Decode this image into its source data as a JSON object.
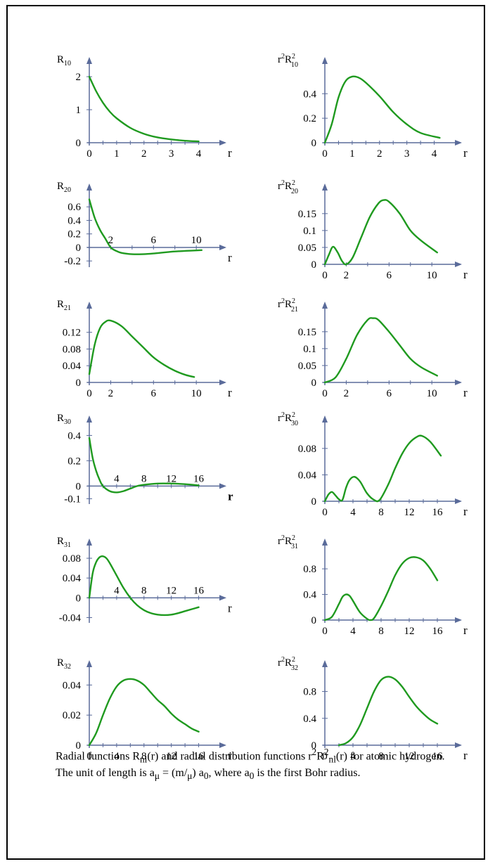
{
  "caption": {
    "line1": "Radial functions R",
    "line1_sub1": "nl",
    "line1_b": "(r) and radial distribution functions r",
    "line1_sup": "2",
    "line1_c": "R",
    "line1_sup2": "2",
    "line1_sub2": "nl",
    "line1_d": "(r) for atomic hydrogen. The unit of length is a",
    "line2_sub_mu": "μ",
    "line2_a": " = (m/",
    "line2_b": "μ",
    "line2_c": ") a",
    "line2_sub0": "0",
    "line2_d": ", where a",
    "line2_sub0b": "0",
    "line2_e": " is the first Bohr radius."
  },
  "colors": {
    "curve": "#1f9a1f",
    "axis": "#5a6b9a"
  },
  "chart_data": [
    {
      "type": "line",
      "ylabel_main": "R",
      "ylabel_sub": "10",
      "ylabel_sup": "",
      "xlabel": "r",
      "xlim": [
        0,
        4.5
      ],
      "ylim": [
        0,
        2.3
      ],
      "xticks": [
        "0",
        "1",
        "2",
        "3",
        "4"
      ],
      "xtickvals": [
        0,
        1,
        2,
        3,
        4
      ],
      "yticks": [
        "0",
        "1",
        "2"
      ],
      "ytickvals": [
        0,
        1,
        2
      ],
      "x": [
        0,
        0.25,
        0.5,
        0.75,
        1,
        1.5,
        2,
        2.5,
        3,
        3.5,
        4
      ],
      "y": [
        2,
        1.56,
        1.21,
        0.94,
        0.74,
        0.45,
        0.27,
        0.16,
        0.1,
        0.06,
        0.04
      ]
    },
    {
      "type": "line",
      "ylabel_main": "r",
      "ylabel_sub": "10",
      "ylabel_sup": "2",
      "xlabel": "r",
      "xlim": [
        0,
        4.5
      ],
      "ylim": [
        0,
        0.62
      ],
      "xticks": [
        "0",
        "1",
        "2",
        "3",
        "4"
      ],
      "xtickvals": [
        0,
        1,
        2,
        3,
        4
      ],
      "yticks": [
        "0",
        "0.2",
        "0.4"
      ],
      "ytickvals": [
        0,
        0.2,
        0.4
      ],
      "x": [
        0,
        0.25,
        0.5,
        0.75,
        1,
        1.25,
        1.5,
        2,
        2.5,
        3,
        3.5,
        4.2
      ],
      "y": [
        0,
        0.15,
        0.37,
        0.5,
        0.54,
        0.53,
        0.49,
        0.38,
        0.25,
        0.15,
        0.08,
        0.04
      ]
    },
    {
      "type": "line",
      "ylabel_main": "R",
      "ylabel_sub": "20",
      "ylabel_sup": "",
      "xlabel": "r",
      "xlim": [
        0,
        11.5
      ],
      "ylim": [
        -0.25,
        0.8
      ],
      "xticks": [
        "2",
        "6",
        "10"
      ],
      "xtickvals": [
        2,
        6,
        10
      ],
      "yticks": [
        "0.6",
        "0.4",
        "0.2",
        "0",
        "-0.2"
      ],
      "ytickvals": [
        0.6,
        0.4,
        0.2,
        0,
        -0.2
      ],
      "x": [
        0,
        0.5,
        1,
        1.5,
        2,
        2.5,
        3,
        4,
        5,
        6,
        8,
        10.5
      ],
      "y": [
        0.71,
        0.44,
        0.26,
        0.13,
        0,
        -0.05,
        -0.08,
        -0.1,
        -0.1,
        -0.09,
        -0.06,
        -0.04
      ]
    },
    {
      "type": "line",
      "ylabel_main": "r",
      "ylabel_sub": "20",
      "ylabel_sup": "2",
      "xlabel": "r",
      "xlim": [
        0,
        11.5
      ],
      "ylim": [
        0,
        0.21
      ],
      "xticks": [
        "0",
        "2",
        "6",
        "10"
      ],
      "xtickvals": [
        0,
        2,
        6,
        10
      ],
      "yticks": [
        "0",
        "0.05",
        "0.1",
        "0.15"
      ],
      "ytickvals": [
        0,
        0.05,
        0.1,
        0.15
      ],
      "x": [
        0,
        0.4,
        0.76,
        1.2,
        1.6,
        2,
        2.6,
        3.4,
        4.2,
        5,
        5.5,
        6,
        7,
        8,
        9,
        10.5
      ],
      "y": [
        0,
        0.03,
        0.052,
        0.035,
        0.01,
        0,
        0.02,
        0.08,
        0.14,
        0.18,
        0.19,
        0.185,
        0.15,
        0.1,
        0.07,
        0.035
      ]
    },
    {
      "type": "line",
      "ylabel_main": "R",
      "ylabel_sub": "21",
      "ylabel_sup": "",
      "xlabel": "r",
      "xlim": [
        0,
        11.5
      ],
      "ylim": [
        0,
        0.17
      ],
      "xticks": [
        "0",
        "2",
        "6",
        "10"
      ],
      "xtickvals": [
        0,
        2,
        6,
        10
      ],
      "yticks": [
        "0",
        "0.04",
        "0.08",
        "0.12"
      ],
      "ytickvals": [
        0,
        0.04,
        0.08,
        0.12
      ],
      "x": [
        0,
        0.5,
        1,
        1.5,
        2,
        3,
        4,
        5,
        6,
        7,
        8,
        9,
        9.8
      ],
      "y": [
        0.02,
        0.09,
        0.13,
        0.145,
        0.148,
        0.135,
        0.11,
        0.085,
        0.06,
        0.042,
        0.028,
        0.018,
        0.013
      ]
    },
    {
      "type": "line",
      "ylabel_main": "r",
      "ylabel_sub": "21",
      "ylabel_sup": "2",
      "xlabel": "r",
      "xlim": [
        0,
        11.5
      ],
      "ylim": [
        0,
        0.21
      ],
      "xticks": [
        "0",
        "2",
        "6",
        "10"
      ],
      "xtickvals": [
        0,
        2,
        6,
        10
      ],
      "yticks": [
        "0",
        "0.05",
        "0.1",
        "0.15"
      ],
      "ytickvals": [
        0,
        0.05,
        0.1,
        0.15
      ],
      "x": [
        0,
        1,
        2,
        3,
        4,
        4.5,
        5,
        6,
        7,
        8,
        9,
        10.5
      ],
      "y": [
        0,
        0.015,
        0.07,
        0.14,
        0.185,
        0.19,
        0.185,
        0.15,
        0.11,
        0.07,
        0.045,
        0.02
      ]
    },
    {
      "type": "line",
      "ylabel_main": "R",
      "ylabel_sub": "30",
      "ylabel_sup": "",
      "xlabel": "r",
      "xlim": [
        0,
        18
      ],
      "ylim": [
        -0.12,
        0.48
      ],
      "xticks": [
        "4",
        "8",
        "12",
        "16"
      ],
      "xtickvals": [
        4,
        8,
        12,
        16
      ],
      "yticks": [
        "0.4",
        "0.2",
        "0",
        "-0.1"
      ],
      "ytickvals": [
        0.4,
        0.2,
        0,
        -0.1
      ],
      "x": [
        0,
        0.5,
        1,
        1.5,
        2,
        3,
        4,
        5,
        6,
        7,
        8,
        10,
        12,
        14,
        16
      ],
      "y": [
        0.38,
        0.22,
        0.12,
        0.05,
        0,
        -0.04,
        -0.05,
        -0.04,
        -0.02,
        0,
        0.01,
        0.02,
        0.02,
        0.015,
        0.005
      ]
    },
    {
      "type": "line",
      "ylabel_main": "r",
      "ylabel_sub": "30",
      "ylabel_sup": "2",
      "xlabel": "r",
      "xlim": [
        0,
        17.5
      ],
      "ylim": [
        0,
        0.115
      ],
      "xticks": [
        "0",
        "4",
        "8",
        "12",
        "16"
      ],
      "xtickvals": [
        0,
        4,
        8,
        12,
        16
      ],
      "yticks": [
        "0",
        "0.04",
        "0.08"
      ],
      "ytickvals": [
        0,
        0.04,
        0.08
      ],
      "x": [
        0,
        0.5,
        1,
        1.5,
        2,
        2.5,
        3,
        3.5,
        4.2,
        5,
        6,
        7,
        7.8,
        9,
        10,
        11,
        12,
        13,
        13.8,
        15,
        16.5
      ],
      "y": [
        0,
        0.01,
        0.014,
        0.009,
        0.003,
        0.002,
        0.02,
        0.032,
        0.037,
        0.03,
        0.012,
        0.002,
        0.002,
        0.025,
        0.05,
        0.072,
        0.088,
        0.097,
        0.099,
        0.09,
        0.069
      ]
    },
    {
      "type": "line",
      "ylabel_main": "R",
      "ylabel_sub": "31",
      "ylabel_sup": "",
      "xlabel": "r",
      "xlim": [
        0,
        18
      ],
      "ylim": [
        -0.045,
        0.1
      ],
      "xticks": [
        "4",
        "8",
        "12",
        "16"
      ],
      "xtickvals": [
        4,
        8,
        12,
        16
      ],
      "yticks": [
        "0.08",
        "0.04",
        "0",
        "-0.04"
      ],
      "ytickvals": [
        0.08,
        0.04,
        0,
        -0.04
      ],
      "x": [
        0,
        0.5,
        1,
        1.5,
        2,
        2.5,
        3,
        4,
        5,
        6,
        7,
        8,
        9,
        10,
        11,
        12,
        13,
        14,
        15,
        16
      ],
      "y": [
        0,
        0.05,
        0.072,
        0.082,
        0.084,
        0.08,
        0.07,
        0.045,
        0.02,
        0,
        -0.015,
        -0.025,
        -0.031,
        -0.034,
        -0.035,
        -0.034,
        -0.031,
        -0.027,
        -0.023,
        -0.019
      ]
    },
    {
      "type": "line",
      "ylabel_main": "r",
      "ylabel_sub": "31",
      "ylabel_sup": "2",
      "xlabel": "r",
      "xlim": [
        0,
        17.5
      ],
      "ylim": [
        0,
        1.12
      ],
      "xticks": [
        "0",
        "4",
        "8",
        "12",
        "16"
      ],
      "xtickvals": [
        0,
        4,
        8,
        12,
        16
      ],
      "yticks": [
        "0",
        "0.4",
        "0.8"
      ],
      "ytickvals": [
        0,
        0.4,
        0.8
      ],
      "x": [
        0,
        1,
        2,
        2.5,
        3,
        3.5,
        4,
        5,
        6,
        6.5,
        7,
        8,
        9,
        10,
        11,
        12,
        13,
        14,
        15,
        16
      ],
      "y": [
        0,
        0.05,
        0.25,
        0.36,
        0.4,
        0.38,
        0.3,
        0.12,
        0.02,
        0,
        0.03,
        0.22,
        0.45,
        0.7,
        0.88,
        0.97,
        0.98,
        0.93,
        0.8,
        0.62
      ]
    },
    {
      "type": "line",
      "ylabel_main": "R",
      "ylabel_sub": "32",
      "ylabel_sup": "",
      "xlabel": "r",
      "xlim": [
        0,
        18
      ],
      "ylim": [
        0,
        0.05
      ],
      "xticks": [
        "0",
        "4",
        "8",
        "12",
        "16"
      ],
      "xtickvals": [
        0,
        4,
        8,
        12,
        16
      ],
      "yticks": [
        "0",
        "0.02",
        "0.04"
      ],
      "ytickvals": [
        0,
        0.02,
        0.04
      ],
      "x": [
        0,
        1,
        2,
        3,
        4,
        5,
        6,
        7,
        8,
        9,
        10,
        11,
        12,
        13,
        14,
        15,
        16
      ],
      "y": [
        0,
        0.008,
        0.02,
        0.031,
        0.039,
        0.043,
        0.044,
        0.043,
        0.04,
        0.035,
        0.03,
        0.026,
        0.021,
        0.017,
        0.014,
        0.011,
        0.009
      ]
    },
    {
      "type": "line",
      "ylabel_main": "r",
      "ylabel_sub": "32",
      "ylabel_sup": "2",
      "xlabel": "r",
      "xlim": [
        0,
        17.5
      ],
      "ylim": [
        0,
        1.12
      ],
      "xticks": [
        "0",
        "4",
        "8",
        "12",
        "16"
      ],
      "xtickvals": [
        0,
        4,
        8,
        12,
        16
      ],
      "yticks": [
        "0",
        "0.4",
        "0.8"
      ],
      "ytickvals": [
        0,
        0.4,
        0.8
      ],
      "x": [
        2,
        3,
        4,
        5,
        6,
        7,
        8,
        9,
        10,
        11,
        12,
        13,
        14,
        15,
        16
      ],
      "y": [
        0,
        0.03,
        0.12,
        0.3,
        0.55,
        0.8,
        0.97,
        1.02,
        0.98,
        0.87,
        0.72,
        0.58,
        0.47,
        0.38,
        0.32
      ]
    }
  ]
}
